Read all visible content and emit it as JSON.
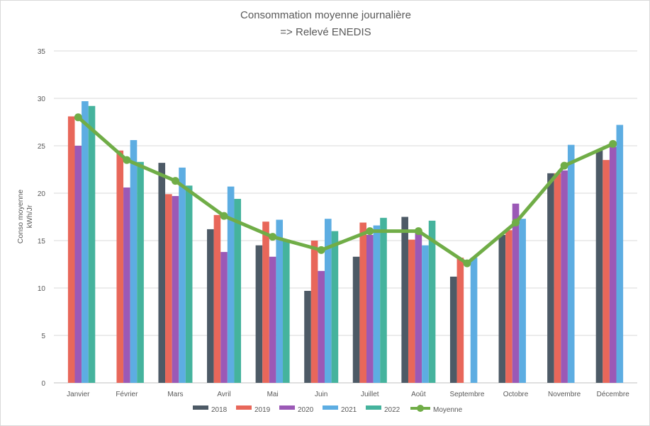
{
  "chart_data": {
    "type": "bar",
    "title": [
      "Consommation moyenne journalière",
      "=> Relevé ENEDIS"
    ],
    "xlabel": "",
    "ylabel": [
      "Conso moyenne",
      "kWh/Jr"
    ],
    "ylim": [
      0,
      35
    ],
    "yticks": [
      "0",
      "5",
      "10",
      "15",
      "20",
      "25",
      "30",
      "35"
    ],
    "grid": true,
    "legend_position": "bottom",
    "categories": [
      "Janvier",
      "Février",
      "Mars",
      "Avril",
      "Mai",
      "Juin",
      "Juillet",
      "Août",
      "Septembre",
      "Octobre",
      "Novembre",
      "Décembre"
    ],
    "series": [
      {
        "name": "2018",
        "color": "#4d5a66",
        "values": [
          null,
          null,
          23.2,
          16.2,
          14.5,
          9.7,
          13.3,
          17.5,
          11.2,
          15.6,
          22.1,
          24.5
        ]
      },
      {
        "name": "2019",
        "color": "#e8675a",
        "values": [
          28.1,
          24.5,
          19.9,
          17.7,
          17.0,
          15.0,
          16.9,
          15.1,
          13.2,
          16.1,
          22.1,
          23.5
        ]
      },
      {
        "name": "2020",
        "color": "#9b59b6",
        "values": [
          25.0,
          20.6,
          19.7,
          13.8,
          13.3,
          11.8,
          15.6,
          16.1,
          null,
          18.9,
          22.4,
          24.9
        ]
      },
      {
        "name": "2021",
        "color": "#5dade2",
        "values": [
          29.7,
          25.6,
          22.7,
          20.7,
          17.2,
          17.3,
          16.6,
          14.5,
          13.2,
          17.3,
          25.1,
          27.2
        ]
      },
      {
        "name": "2022",
        "color": "#45b39d",
        "values": [
          29.2,
          23.3,
          20.8,
          19.4,
          15.1,
          16.0,
          17.4,
          17.1,
          null,
          null,
          null,
          null
        ]
      }
    ],
    "line_series": {
      "name": "Moyenne",
      "color": "#70ad47",
      "values": [
        28.0,
        23.5,
        21.3,
        17.6,
        15.4,
        14.0,
        16.0,
        16.0,
        12.6,
        16.9,
        22.9,
        25.2
      ]
    }
  }
}
